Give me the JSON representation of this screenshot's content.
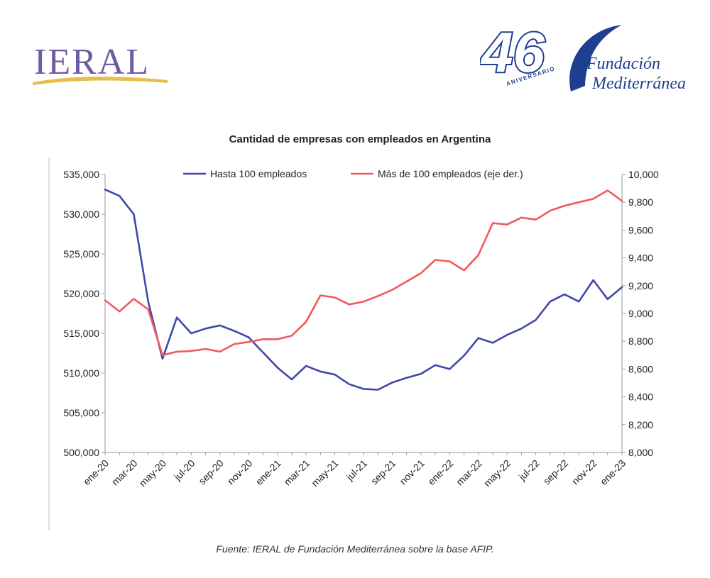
{
  "header": {
    "left_logo": "IERAL",
    "right_logo_number": "46",
    "right_logo_arc": "ANIVERSARIO",
    "right_logo_line1": "Fundación",
    "right_logo_line2": "Mediterránea"
  },
  "footer": {
    "source": "Fuente: IERAL de Fundación Mediterránea sobre la base AFIP."
  },
  "colors": {
    "series_left": "#3f48a8",
    "series_right": "#ef5a5a",
    "axis": "#9a9a9a"
  },
  "chart_data": {
    "type": "line",
    "title": "Cantidad de empresas con empleados en Argentina",
    "legend_position": "top",
    "grid": false,
    "x": [
      "ene-20",
      "feb-20",
      "mar-20",
      "abr-20",
      "may-20",
      "jun-20",
      "jul-20",
      "ago-20",
      "sep-20",
      "oct-20",
      "nov-20",
      "dic-20",
      "ene-21",
      "feb-21",
      "mar-21",
      "abr-21",
      "may-21",
      "jun-21",
      "jul-21",
      "ago-21",
      "sep-21",
      "oct-21",
      "nov-21",
      "dic-21",
      "ene-22",
      "feb-22",
      "mar-22",
      "abr-22",
      "may-22",
      "jun-22",
      "jul-22",
      "ago-22",
      "sep-22",
      "oct-22",
      "nov-22",
      "dic-22",
      "ene-23"
    ],
    "x_tick_labels": [
      "ene-20",
      "mar-20",
      "may-20",
      "jul-20",
      "sep-20",
      "nov-20",
      "ene-21",
      "mar-21",
      "may-21",
      "jul-21",
      "sep-21",
      "nov-21",
      "ene-22",
      "mar-22",
      "may-22",
      "jul-22",
      "sep-22",
      "nov-22",
      "ene-23"
    ],
    "y_left": {
      "range": [
        500000,
        535000
      ],
      "ticks": [
        500000,
        505000,
        510000,
        515000,
        520000,
        525000,
        530000,
        535000
      ],
      "tick_labels": [
        "500,000",
        "505,000",
        "510,000",
        "515,000",
        "520,000",
        "525,000",
        "530,000",
        "535,000"
      ]
    },
    "y_right": {
      "range": [
        8000,
        10000
      ],
      "ticks": [
        8000,
        8200,
        8400,
        8600,
        8800,
        9000,
        9200,
        9400,
        9600,
        9800,
        10000
      ],
      "tick_labels": [
        "8,000",
        "8,200",
        "8,400",
        "8,600",
        "8,800",
        "9,000",
        "9,200",
        "9,400",
        "9,600",
        "9,800",
        "10,000"
      ]
    },
    "series": [
      {
        "name": "Hasta 100 empleados",
        "axis": "left",
        "values": [
          533100,
          532300,
          530000,
          519000,
          511800,
          517000,
          515000,
          515600,
          516000,
          515300,
          514500,
          512600,
          510700,
          509200,
          510900,
          510200,
          509800,
          508600,
          508000,
          507900,
          508800,
          509400,
          509900,
          511000,
          510500,
          512200,
          514400,
          513800,
          514800,
          515600,
          516700,
          519000,
          519900,
          519000,
          521700,
          519300,
          520800
        ]
      },
      {
        "name": "Más de 100 empleados (eje der.)",
        "axis": "right",
        "values": [
          9095,
          9015,
          9105,
          9030,
          8700,
          8725,
          8730,
          8745,
          8725,
          8780,
          8795,
          8815,
          8815,
          8840,
          8940,
          9130,
          9115,
          9065,
          9085,
          9125,
          9170,
          9230,
          9290,
          9385,
          9375,
          9310,
          9420,
          9650,
          9640,
          9690,
          9675,
          9740,
          9775,
          9800,
          9825,
          9885,
          9810
        ]
      }
    ]
  }
}
